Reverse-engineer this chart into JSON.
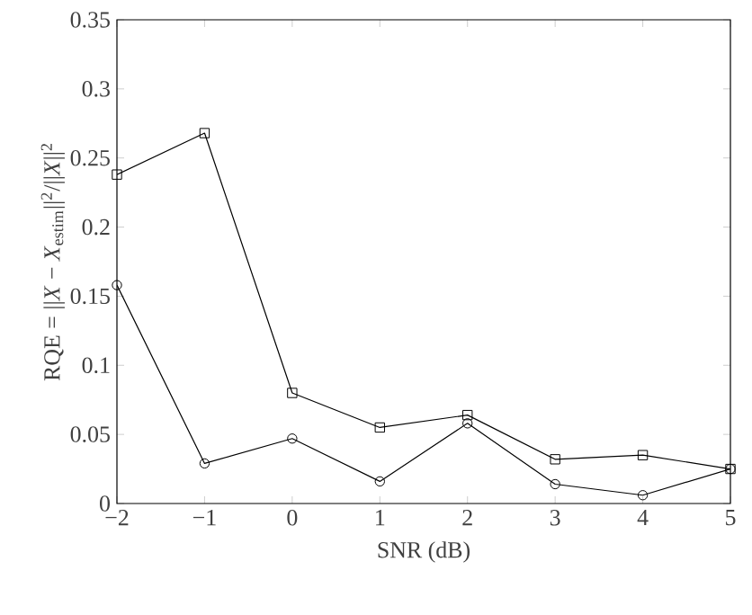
{
  "chart_data": {
    "type": "line",
    "xlabel": "SNR (dB)",
    "ylabel": "RQE = ||*X* − *X*$_{estim}$||$^{2}$/||*X*||$^{2}$",
    "x": [
      -2,
      -1,
      0,
      1,
      2,
      3,
      4,
      5
    ],
    "series": [
      {
        "color": "#000000",
        "marker": "square",
        "values": [
          0.238,
          0.268,
          0.08,
          0.055,
          0.064,
          0.032,
          0.035,
          0.025
        ]
      },
      {
        "color": "#000000",
        "marker": "circle",
        "values": [
          0.158,
          0.029,
          0.047,
          0.016,
          0.058,
          0.014,
          0.006,
          0.025
        ]
      }
    ],
    "xlim": [
      -2,
      5
    ],
    "ylim": [
      0,
      0.35
    ],
    "xticks": [
      {
        "value": -2,
        "label": "−2"
      },
      {
        "value": -1,
        "label": "−1"
      },
      0,
      1,
      2,
      3,
      4,
      5
    ],
    "yticks": [
      0,
      0.05,
      0.1,
      0.15,
      0.2,
      0.25,
      0.3,
      0.35
    ],
    "grid": false,
    "line_style": "solid"
  }
}
